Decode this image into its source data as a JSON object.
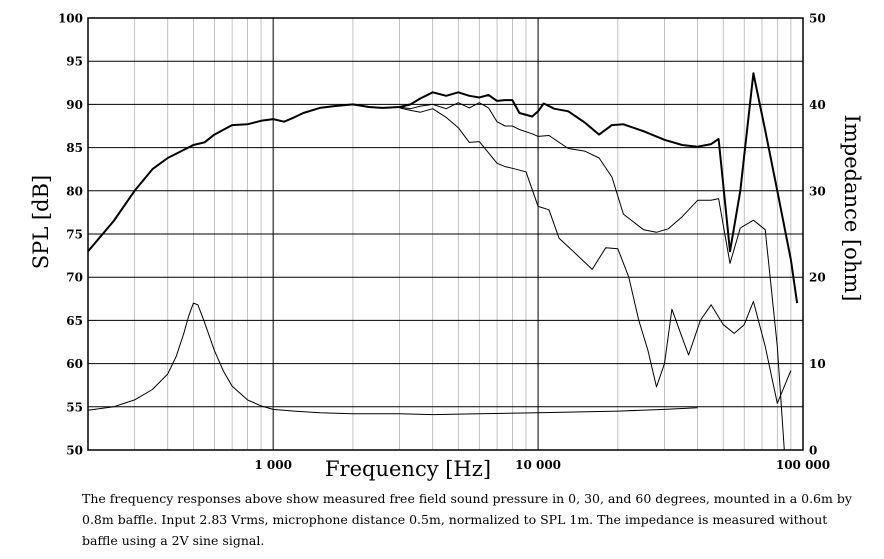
{
  "chart_data": {
    "type": "line",
    "xlabel": "Frequency [Hz]",
    "ylabel_left": "SPL [dB]",
    "ylabel_right": "Impedance [ohm]",
    "x_scale": "log",
    "xlim": [
      200,
      100000
    ],
    "ylim_left": [
      50,
      100
    ],
    "ylim_right": [
      0,
      50
    ],
    "x_tick_labels": [
      {
        "value": 1000,
        "label": "1 000"
      },
      {
        "value": 10000,
        "label": "10 000"
      },
      {
        "value": 100000,
        "label": "100 000"
      }
    ],
    "y_left_ticks": [
      50,
      55,
      60,
      65,
      70,
      75,
      80,
      85,
      90,
      95,
      100
    ],
    "y_right_ticks": [
      0,
      10,
      20,
      30,
      40,
      50
    ],
    "grid": true,
    "series": [
      {
        "axis": "left",
        "stroke": 2.0,
        "points": [
          [
            200,
            73
          ],
          [
            250,
            76.5
          ],
          [
            300,
            80
          ],
          [
            350,
            82.5
          ],
          [
            400,
            83.8
          ],
          [
            450,
            84.6
          ],
          [
            500,
            85.3
          ],
          [
            550,
            85.6
          ],
          [
            600,
            86.5
          ],
          [
            700,
            87.6
          ],
          [
            800,
            87.7
          ],
          [
            900,
            88.1
          ],
          [
            1000,
            88.3
          ],
          [
            1100,
            88.0
          ],
          [
            1200,
            88.5
          ],
          [
            1300,
            89.0
          ],
          [
            1500,
            89.6
          ],
          [
            1700,
            89.8
          ],
          [
            2000,
            90.0
          ],
          [
            2300,
            89.7
          ],
          [
            2600,
            89.6
          ],
          [
            3000,
            89.7
          ],
          [
            3300,
            90.0
          ],
          [
            3600,
            90.7
          ],
          [
            4000,
            91.4
          ],
          [
            4500,
            91.0
          ],
          [
            5000,
            91.4
          ],
          [
            5500,
            91.0
          ],
          [
            6000,
            90.8
          ],
          [
            6500,
            91.1
          ],
          [
            7000,
            90.4
          ],
          [
            7500,
            90.5
          ],
          [
            8000,
            90.5
          ],
          [
            8500,
            89.0
          ],
          [
            9500,
            88.6
          ],
          [
            10000,
            89.2
          ],
          [
            10500,
            90.1
          ],
          [
            11500,
            89.5
          ],
          [
            13000,
            89.2
          ],
          [
            15000,
            87.9
          ],
          [
            17000,
            86.5
          ],
          [
            19000,
            87.6
          ],
          [
            21000,
            87.7
          ],
          [
            25000,
            86.9
          ],
          [
            30000,
            85.9
          ],
          [
            35000,
            85.3
          ],
          [
            40000,
            85.1
          ],
          [
            45000,
            85.4
          ],
          [
            48000,
            86.0
          ],
          [
            53000,
            73.0
          ],
          [
            58000,
            80.0
          ],
          [
            65000,
            93.6
          ],
          [
            72000,
            87.0
          ],
          [
            80000,
            80.0
          ],
          [
            90000,
            72.0
          ],
          [
            95000,
            67.0
          ]
        ]
      },
      {
        "axis": "left",
        "stroke": 1.0,
        "points": [
          [
            3000,
            89.7
          ],
          [
            3300,
            89.5
          ],
          [
            3600,
            89.8
          ],
          [
            4000,
            90.0
          ],
          [
            4500,
            89.5
          ],
          [
            5000,
            90.2
          ],
          [
            5500,
            89.6
          ],
          [
            6000,
            90.2
          ],
          [
            6500,
            89.6
          ],
          [
            7000,
            88.0
          ],
          [
            7500,
            87.5
          ],
          [
            8000,
            87.5
          ],
          [
            8500,
            87.1
          ],
          [
            9500,
            86.6
          ],
          [
            10000,
            86.3
          ],
          [
            11000,
            86.4
          ],
          [
            13000,
            84.9
          ],
          [
            15000,
            84.6
          ],
          [
            17000,
            83.8
          ],
          [
            19000,
            81.6
          ],
          [
            21000,
            77.3
          ],
          [
            25000,
            75.5
          ],
          [
            28000,
            75.2
          ],
          [
            31000,
            75.6
          ],
          [
            35000,
            77.0
          ],
          [
            40000,
            78.9
          ],
          [
            45000,
            78.9
          ],
          [
            48000,
            79.1
          ],
          [
            53000,
            71.6
          ],
          [
            58000,
            75.7
          ],
          [
            65000,
            76.6
          ],
          [
            72000,
            75.5
          ],
          [
            80000,
            62.0
          ],
          [
            85000,
            50.0
          ]
        ]
      },
      {
        "axis": "left",
        "stroke": 1.0,
        "points": [
          [
            3000,
            89.6
          ],
          [
            3300,
            89.3
          ],
          [
            3600,
            89.1
          ],
          [
            4000,
            89.5
          ],
          [
            4500,
            88.5
          ],
          [
            5000,
            87.3
          ],
          [
            5500,
            85.6
          ],
          [
            6000,
            85.7
          ],
          [
            6500,
            84.4
          ],
          [
            7000,
            83.2
          ],
          [
            7500,
            82.8
          ],
          [
            8000,
            82.6
          ],
          [
            9000,
            82.2
          ],
          [
            10000,
            78.2
          ],
          [
            11000,
            77.8
          ],
          [
            12000,
            74.5
          ],
          [
            14000,
            72.6
          ],
          [
            16000,
            70.9
          ],
          [
            18000,
            73.4
          ],
          [
            20000,
            73.3
          ],
          [
            22000,
            70.0
          ],
          [
            24000,
            65.0
          ],
          [
            26000,
            61.5
          ],
          [
            28000,
            57.3
          ],
          [
            30000,
            60.0
          ],
          [
            32000,
            66.3
          ],
          [
            35000,
            63.0
          ],
          [
            37000,
            61.0
          ],
          [
            41000,
            65.0
          ],
          [
            45000,
            66.8
          ],
          [
            50000,
            64.5
          ],
          [
            55000,
            63.5
          ],
          [
            60000,
            64.5
          ],
          [
            65000,
            67.2
          ],
          [
            72000,
            62.0
          ],
          [
            80000,
            55.4
          ],
          [
            90000,
            59.2
          ]
        ]
      },
      {
        "axis": "right",
        "stroke": 1.0,
        "points": [
          [
            200,
            4.6
          ],
          [
            250,
            5.0
          ],
          [
            300,
            5.8
          ],
          [
            350,
            7.0
          ],
          [
            400,
            8.8
          ],
          [
            430,
            10.8
          ],
          [
            460,
            13.5
          ],
          [
            480,
            15.5
          ],
          [
            500,
            17.0
          ],
          [
            520,
            16.8
          ],
          [
            550,
            14.8
          ],
          [
            600,
            11.5
          ],
          [
            650,
            9.1
          ],
          [
            700,
            7.4
          ],
          [
            800,
            5.8
          ],
          [
            900,
            5.1
          ],
          [
            1000,
            4.7
          ],
          [
            1200,
            4.5
          ],
          [
            1500,
            4.3
          ],
          [
            2000,
            4.2
          ],
          [
            3000,
            4.2
          ],
          [
            4000,
            4.1
          ],
          [
            6000,
            4.2
          ],
          [
            10000,
            4.3
          ],
          [
            20000,
            4.5
          ],
          [
            30000,
            4.7
          ],
          [
            40000,
            4.9
          ]
        ]
      }
    ]
  },
  "caption": "The frequency responses above show measured free field sound pressure in 0, 30, and 60 degrees, mounted in a 0.6m by 0.8m baffle. Input 2.83 Vrms, microphone distance 0.5m, normalized to SPL 1m. The impedance is measured without baffle using a 2V sine signal."
}
